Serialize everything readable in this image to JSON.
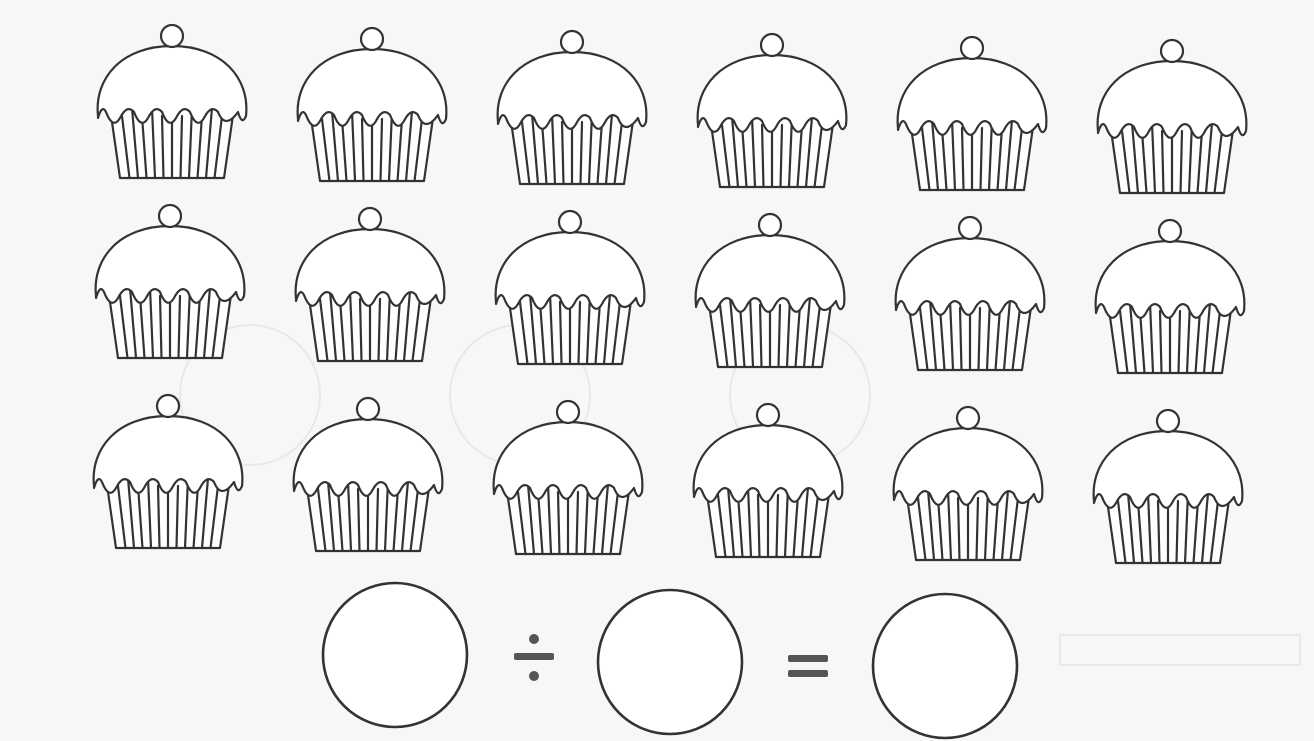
{
  "worksheet": {
    "cupcakes": {
      "rows": 3,
      "per_row": 6
    },
    "equation": {
      "operator_divide": "÷",
      "operator_equals": "="
    }
  }
}
